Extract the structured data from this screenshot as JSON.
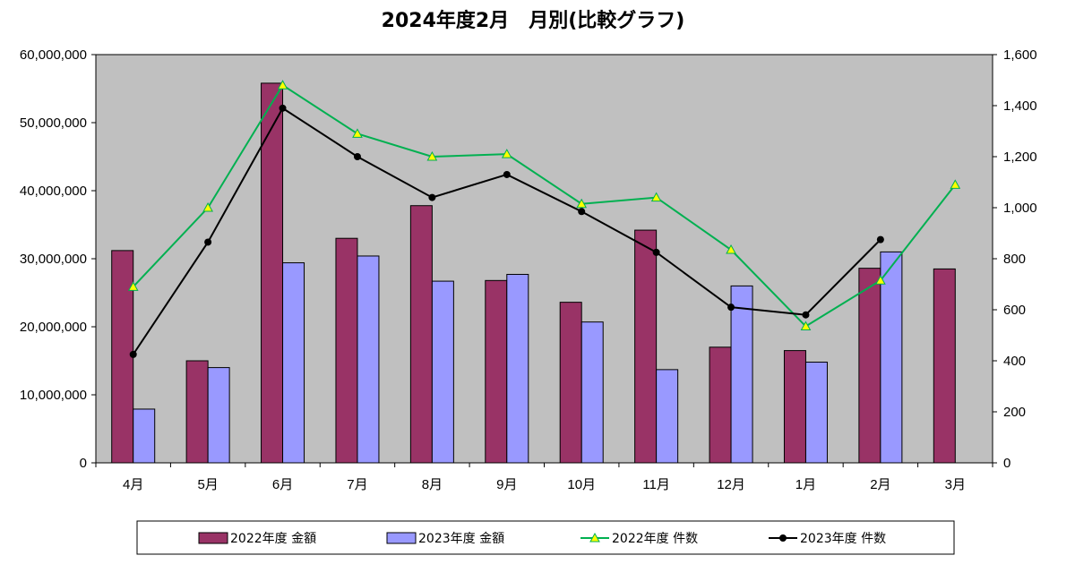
{
  "chart_data": {
    "type": "bar",
    "title": "2024年度2月　月別(比較グラフ)",
    "categories": [
      "4月",
      "5月",
      "6月",
      "7月",
      "8月",
      "9月",
      "10月",
      "11月",
      "12月",
      "1月",
      "2月",
      "3月"
    ],
    "y_left": {
      "min": 0,
      "max": 60000000,
      "ticks": [
        "0",
        "10,000,000",
        "20,000,000",
        "30,000,000",
        "40,000,000",
        "50,000,000",
        "60,000,000"
      ]
    },
    "y_right": {
      "min": 0,
      "max": 1600,
      "ticks": [
        "0",
        "200",
        "400",
        "600",
        "800",
        "1,000",
        "1,200",
        "1,400",
        "1,600"
      ]
    },
    "series": [
      {
        "name": "2022年度 金額",
        "kind": "bar",
        "axis": "left",
        "color": "#993366",
        "values": [
          31200000,
          15000000,
          55800000,
          33000000,
          37800000,
          26800000,
          23600000,
          34200000,
          17000000,
          16500000,
          28600000,
          28500000
        ]
      },
      {
        "name": "2023年度 金額",
        "kind": "bar",
        "axis": "left",
        "color": "#9999ff",
        "values": [
          7900000,
          14000000,
          29400000,
          30400000,
          26700000,
          27700000,
          20700000,
          13700000,
          26000000,
          14800000,
          31000000,
          null
        ]
      },
      {
        "name": "2022年度 件数",
        "kind": "line",
        "axis": "right",
        "color": "#00b050",
        "marker": "triangle",
        "marker_fill": "#ffff00",
        "values": [
          690,
          1000,
          1480,
          1290,
          1200,
          1210,
          1015,
          1040,
          835,
          535,
          715,
          1090
        ]
      },
      {
        "name": "2023年度 件数",
        "kind": "line",
        "axis": "right",
        "color": "#000000",
        "marker": "circle",
        "values": [
          425,
          865,
          1390,
          1200,
          1040,
          1130,
          985,
          825,
          610,
          580,
          875,
          null
        ]
      }
    ],
    "plot_background": "#c0c0c0",
    "grid": false,
    "legend_position": "bottom"
  }
}
